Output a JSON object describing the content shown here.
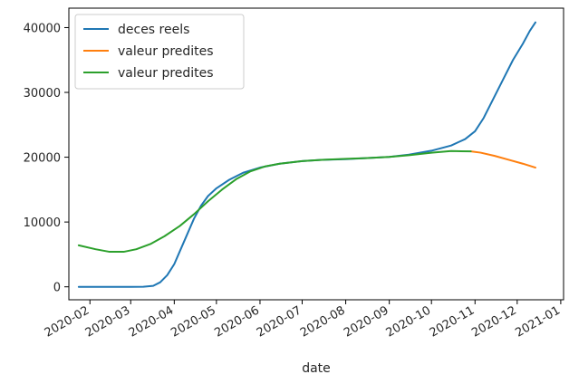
{
  "chart_data": {
    "type": "line",
    "xlabel": "date",
    "ylabel": "",
    "title": "",
    "x_tick_labels": [
      "2020-02",
      "2020-03",
      "2020-04",
      "2020-05",
      "2020-06",
      "2020-07",
      "2020-08",
      "2020-09",
      "2020-10",
      "2020-11",
      "2020-12",
      "2021-01"
    ],
    "y_ticks": [
      0,
      10000,
      20000,
      30000,
      40000
    ],
    "x_range": [
      "2020-01-17",
      "2021-01-03"
    ],
    "y_range": [
      -2000,
      43000
    ],
    "legend_position": "upper-left",
    "grid": false,
    "series": [
      {
        "name": "deces reels",
        "color": "#1f77b4",
        "points": [
          [
            "2020-01-24",
            0
          ],
          [
            "2020-02-15",
            0
          ],
          [
            "2020-03-01",
            0
          ],
          [
            "2020-03-10",
            5
          ],
          [
            "2020-03-17",
            150
          ],
          [
            "2020-03-22",
            700
          ],
          [
            "2020-03-27",
            1800
          ],
          [
            "2020-04-01",
            3500
          ],
          [
            "2020-04-05",
            5500
          ],
          [
            "2020-04-10",
            8000
          ],
          [
            "2020-04-15",
            10500
          ],
          [
            "2020-04-20",
            12500
          ],
          [
            "2020-04-25",
            14000
          ],
          [
            "2020-05-01",
            15200
          ],
          [
            "2020-05-10",
            16500
          ],
          [
            "2020-05-20",
            17600
          ],
          [
            "2020-06-01",
            18400
          ],
          [
            "2020-06-15",
            19000
          ],
          [
            "2020-07-01",
            19400
          ],
          [
            "2020-07-15",
            19600
          ],
          [
            "2020-08-01",
            19700
          ],
          [
            "2020-08-15",
            19850
          ],
          [
            "2020-09-01",
            20050
          ],
          [
            "2020-09-15",
            20400
          ],
          [
            "2020-10-01",
            21000
          ],
          [
            "2020-10-15",
            21800
          ],
          [
            "2020-10-25",
            22800
          ],
          [
            "2020-11-01",
            24000
          ],
          [
            "2020-11-07",
            26000
          ],
          [
            "2020-11-14",
            29000
          ],
          [
            "2020-11-21",
            32000
          ],
          [
            "2020-11-28",
            35000
          ],
          [
            "2020-12-05",
            37500
          ],
          [
            "2020-12-10",
            39500
          ],
          [
            "2020-12-14",
            40800
          ]
        ]
      },
      {
        "name": "valeur predites",
        "color": "#ff7f0e",
        "points": [
          [
            "2020-10-29",
            20900
          ],
          [
            "2020-11-05",
            20700
          ],
          [
            "2020-11-15",
            20200
          ],
          [
            "2020-11-25",
            19600
          ],
          [
            "2020-12-05",
            19000
          ],
          [
            "2020-12-14",
            18400
          ]
        ]
      },
      {
        "name": "valeur predites",
        "color": "#2ca02c",
        "points": [
          [
            "2020-01-24",
            6400
          ],
          [
            "2020-02-05",
            5800
          ],
          [
            "2020-02-15",
            5400
          ],
          [
            "2020-02-25",
            5400
          ],
          [
            "2020-03-05",
            5800
          ],
          [
            "2020-03-15",
            6600
          ],
          [
            "2020-03-25",
            7800
          ],
          [
            "2020-04-05",
            9400
          ],
          [
            "2020-04-15",
            11200
          ],
          [
            "2020-04-25",
            13200
          ],
          [
            "2020-05-05",
            15000
          ],
          [
            "2020-05-15",
            16600
          ],
          [
            "2020-05-25",
            17800
          ],
          [
            "2020-06-05",
            18600
          ],
          [
            "2020-06-15",
            19000
          ],
          [
            "2020-07-01",
            19400
          ],
          [
            "2020-07-15",
            19600
          ],
          [
            "2020-08-01",
            19750
          ],
          [
            "2020-08-15",
            19850
          ],
          [
            "2020-09-01",
            20050
          ],
          [
            "2020-09-15",
            20300
          ],
          [
            "2020-10-01",
            20700
          ],
          [
            "2020-10-15",
            20950
          ],
          [
            "2020-10-29",
            20900
          ]
        ]
      }
    ]
  }
}
